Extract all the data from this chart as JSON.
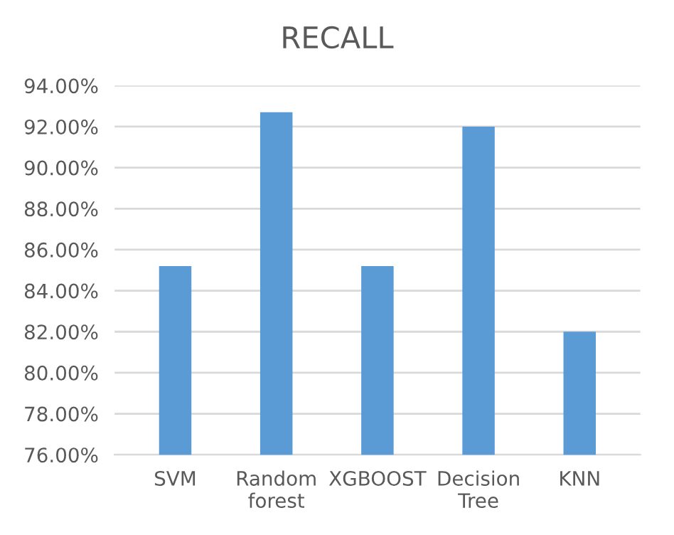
{
  "chart_data": {
    "type": "bar",
    "title": "RECALL",
    "categories": [
      "SVM",
      "Random forest",
      "XGBOOST",
      "Decision Tree",
      "KNN"
    ],
    "values": [
      85.2,
      92.7,
      85.2,
      92.0,
      82.0
    ],
    "color": "#5b9bd5",
    "ylim": [
      76,
      94
    ],
    "yticks": [
      {
        "value": 76,
        "label": "76.00%"
      },
      {
        "value": 78,
        "label": "78.00%"
      },
      {
        "value": 80,
        "label": "80.00%"
      },
      {
        "value": 82,
        "label": "82.00%"
      },
      {
        "value": 84,
        "label": "84.00%"
      },
      {
        "value": 86,
        "label": "86.00%"
      },
      {
        "value": 88,
        "label": "88.00%"
      },
      {
        "value": 90,
        "label": "90.00%"
      },
      {
        "value": 92,
        "label": "92.00%"
      },
      {
        "value": 94,
        "label": "94.00%"
      }
    ],
    "grid": "y"
  }
}
